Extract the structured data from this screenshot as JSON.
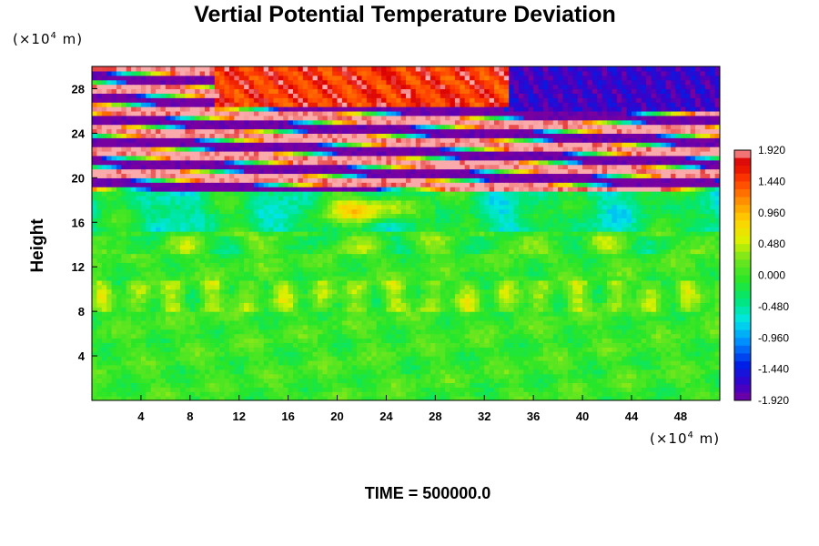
{
  "chart_data": {
    "type": "heatmap",
    "title": "Vertial Potential Temperature Deviation",
    "ylabel": "Height",
    "xlabel": "",
    "y_unit_base": "(×10",
    "y_unit_exp": "4",
    "y_unit_end": " m)",
    "x_unit_base": "(×10",
    "x_unit_exp": "4",
    "x_unit_end": " m)",
    "x_range": [
      0,
      51.2
    ],
    "y_range": [
      0,
      30
    ],
    "x_ticks": [
      4,
      8,
      12,
      16,
      20,
      24,
      28,
      32,
      36,
      40,
      44,
      48
    ],
    "y_ticks": [
      4,
      8,
      12,
      16,
      20,
      24,
      28
    ],
    "colorbar": {
      "range": [
        -1.92,
        1.92
      ],
      "labels": [
        "1.920",
        "1.440",
        "0.960",
        "0.480",
        "0.000",
        "-0.480",
        "-0.960",
        "-1.440",
        "-1.920"
      ],
      "label_values": [
        1.92,
        1.44,
        0.96,
        0.48,
        0.0,
        -0.48,
        -0.96,
        -1.44,
        -1.92
      ]
    },
    "field_description": {
      "lower_region_value": 0.0,
      "band_region_y": [
        19,
        26.5
      ],
      "band_region_values": [
        1.92,
        -1.92
      ],
      "upper_left_high": {
        "x": [
          10,
          34
        ],
        "y": [
          26.5,
          30
        ],
        "value": 1.92
      },
      "upper_right_low": {
        "x": [
          34,
          51.2
        ],
        "y": [
          26,
          30
        ],
        "value": -1.92
      },
      "warm_patch": {
        "x": [
          16,
          28
        ],
        "y": [
          16.5,
          17.5
        ],
        "value": 1.5
      }
    }
  },
  "footer": {
    "time_label": "TIME = 500000.0"
  }
}
